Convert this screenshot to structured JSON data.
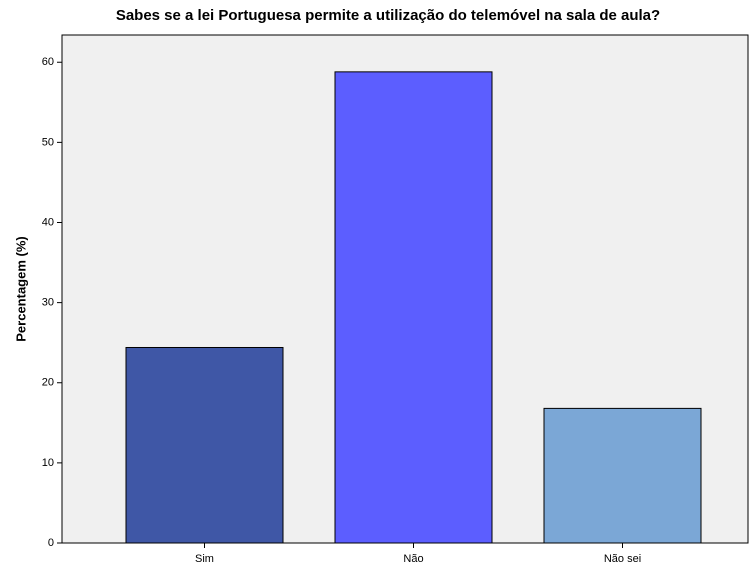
{
  "chart_data": {
    "type": "bar",
    "title": "Sabes se a lei Portuguesa permite a utilização do telemóvel na sala de aula?",
    "y_label": "Percentagem (%)",
    "categories": [
      "Sim",
      "Não",
      "Não sei"
    ],
    "values": [
      24.4,
      58.8,
      16.8
    ],
    "colors": [
      "#3f57a6",
      "#5c5eff",
      "#7ba7d6"
    ],
    "ylim": [
      0,
      63.4
    ],
    "yticks": [
      0,
      10,
      20,
      30,
      40,
      50,
      60
    ]
  }
}
